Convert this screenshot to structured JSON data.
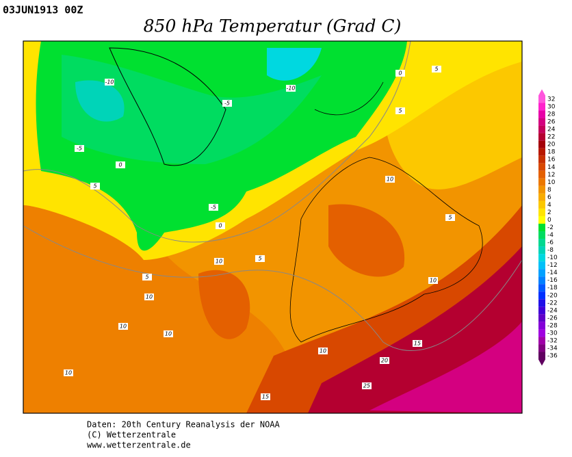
{
  "header": {
    "timestamp": "03JUN1913 00Z",
    "title": "850 hPa Temperatur (Grad C)"
  },
  "colorbar": {
    "levels": [
      32,
      30,
      28,
      26,
      24,
      22,
      20,
      18,
      16,
      14,
      12,
      10,
      8,
      6,
      4,
      2,
      0,
      -2,
      -4,
      -6,
      -8,
      -10,
      -12,
      -14,
      -16,
      -18,
      -20,
      -22,
      -24,
      -26,
      -28,
      -30,
      -32,
      -34,
      -36
    ],
    "colors": [
      "#ff55dd",
      "#ff22cc",
      "#e800a8",
      "#d40080",
      "#c4005a",
      "#b40030",
      "#a40008",
      "#b81800",
      "#c83000",
      "#d84800",
      "#e46000",
      "#ec7800",
      "#f29400",
      "#f8ac00",
      "#fcc800",
      "#ffe400",
      "#ffff00",
      "#00e030",
      "#00dc60",
      "#00d890",
      "#00d4b8",
      "#00d8e0",
      "#00c0f8",
      "#00a0ff",
      "#0080ff",
      "#0058ff",
      "#0030ff",
      "#2010e8",
      "#4000d8",
      "#6000c8",
      "#8400d8",
      "#a000e0",
      "#a000a8",
      "#800080",
      "#600060"
    ]
  },
  "contour_labels": [
    "-10",
    "-10",
    "-5",
    "-5",
    "-5",
    "0",
    "0",
    "0",
    "5",
    "5",
    "5",
    "5",
    "5",
    "5",
    "10",
    "10",
    "10",
    "10",
    "10",
    "10",
    "10",
    "10",
    "15",
    "15",
    "20",
    "25"
  ],
  "footer": [
    "Daten: 20th Century Reanalysis der NOAA",
    "(C) Wetterzentrale",
    "www.wetterzentrale.de"
  ]
}
